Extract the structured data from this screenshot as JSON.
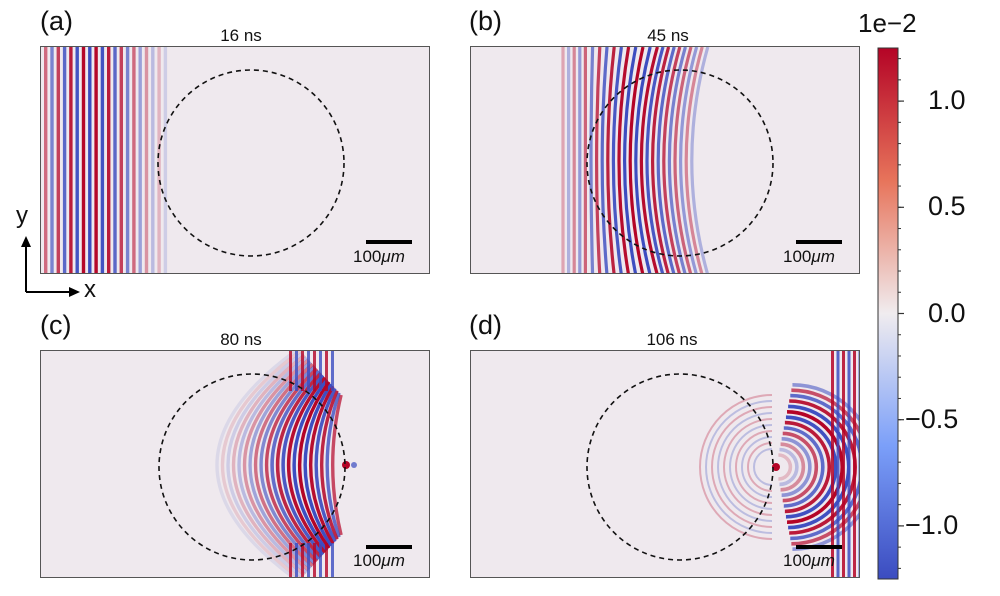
{
  "chart_data": {
    "type": "heatmap",
    "description_units": {
      "scale_bar": "100μm"
    },
    "panels": [
      {
        "id": "a",
        "label": "(a)",
        "time": "16 ns",
        "scale_value": "100",
        "scale_unit": "μm"
      },
      {
        "id": "b",
        "label": "(b)",
        "time": "45 ns",
        "scale_value": "100",
        "scale_unit": "μm"
      },
      {
        "id": "c",
        "label": "(c)",
        "time": "80 ns",
        "scale_value": "100",
        "scale_unit": "μm"
      },
      {
        "id": "d",
        "label": "(d)",
        "time": "106 ns",
        "scale_value": "100",
        "scale_unit": "μm"
      }
    ],
    "axes_indicator": {
      "y": "y",
      "x": "x"
    },
    "colorbar": {
      "exponent_label": "1e−2",
      "range": [
        -1.25,
        1.25
      ],
      "ticks": [
        {
          "value": 1.0,
          "label": "1.0"
        },
        {
          "value": 0.5,
          "label": "0.5"
        },
        {
          "value": 0.0,
          "label": "0.0"
        },
        {
          "value": -0.5,
          "label": "−0.5"
        },
        {
          "value": -1.0,
          "label": "−1.0"
        }
      ],
      "minor_step": 0.1,
      "colormap": "coolwarm-diverging",
      "colors": {
        "max": "#b40426",
        "mid": "#f0ecef",
        "min": "#3b4cc0"
      }
    }
  }
}
